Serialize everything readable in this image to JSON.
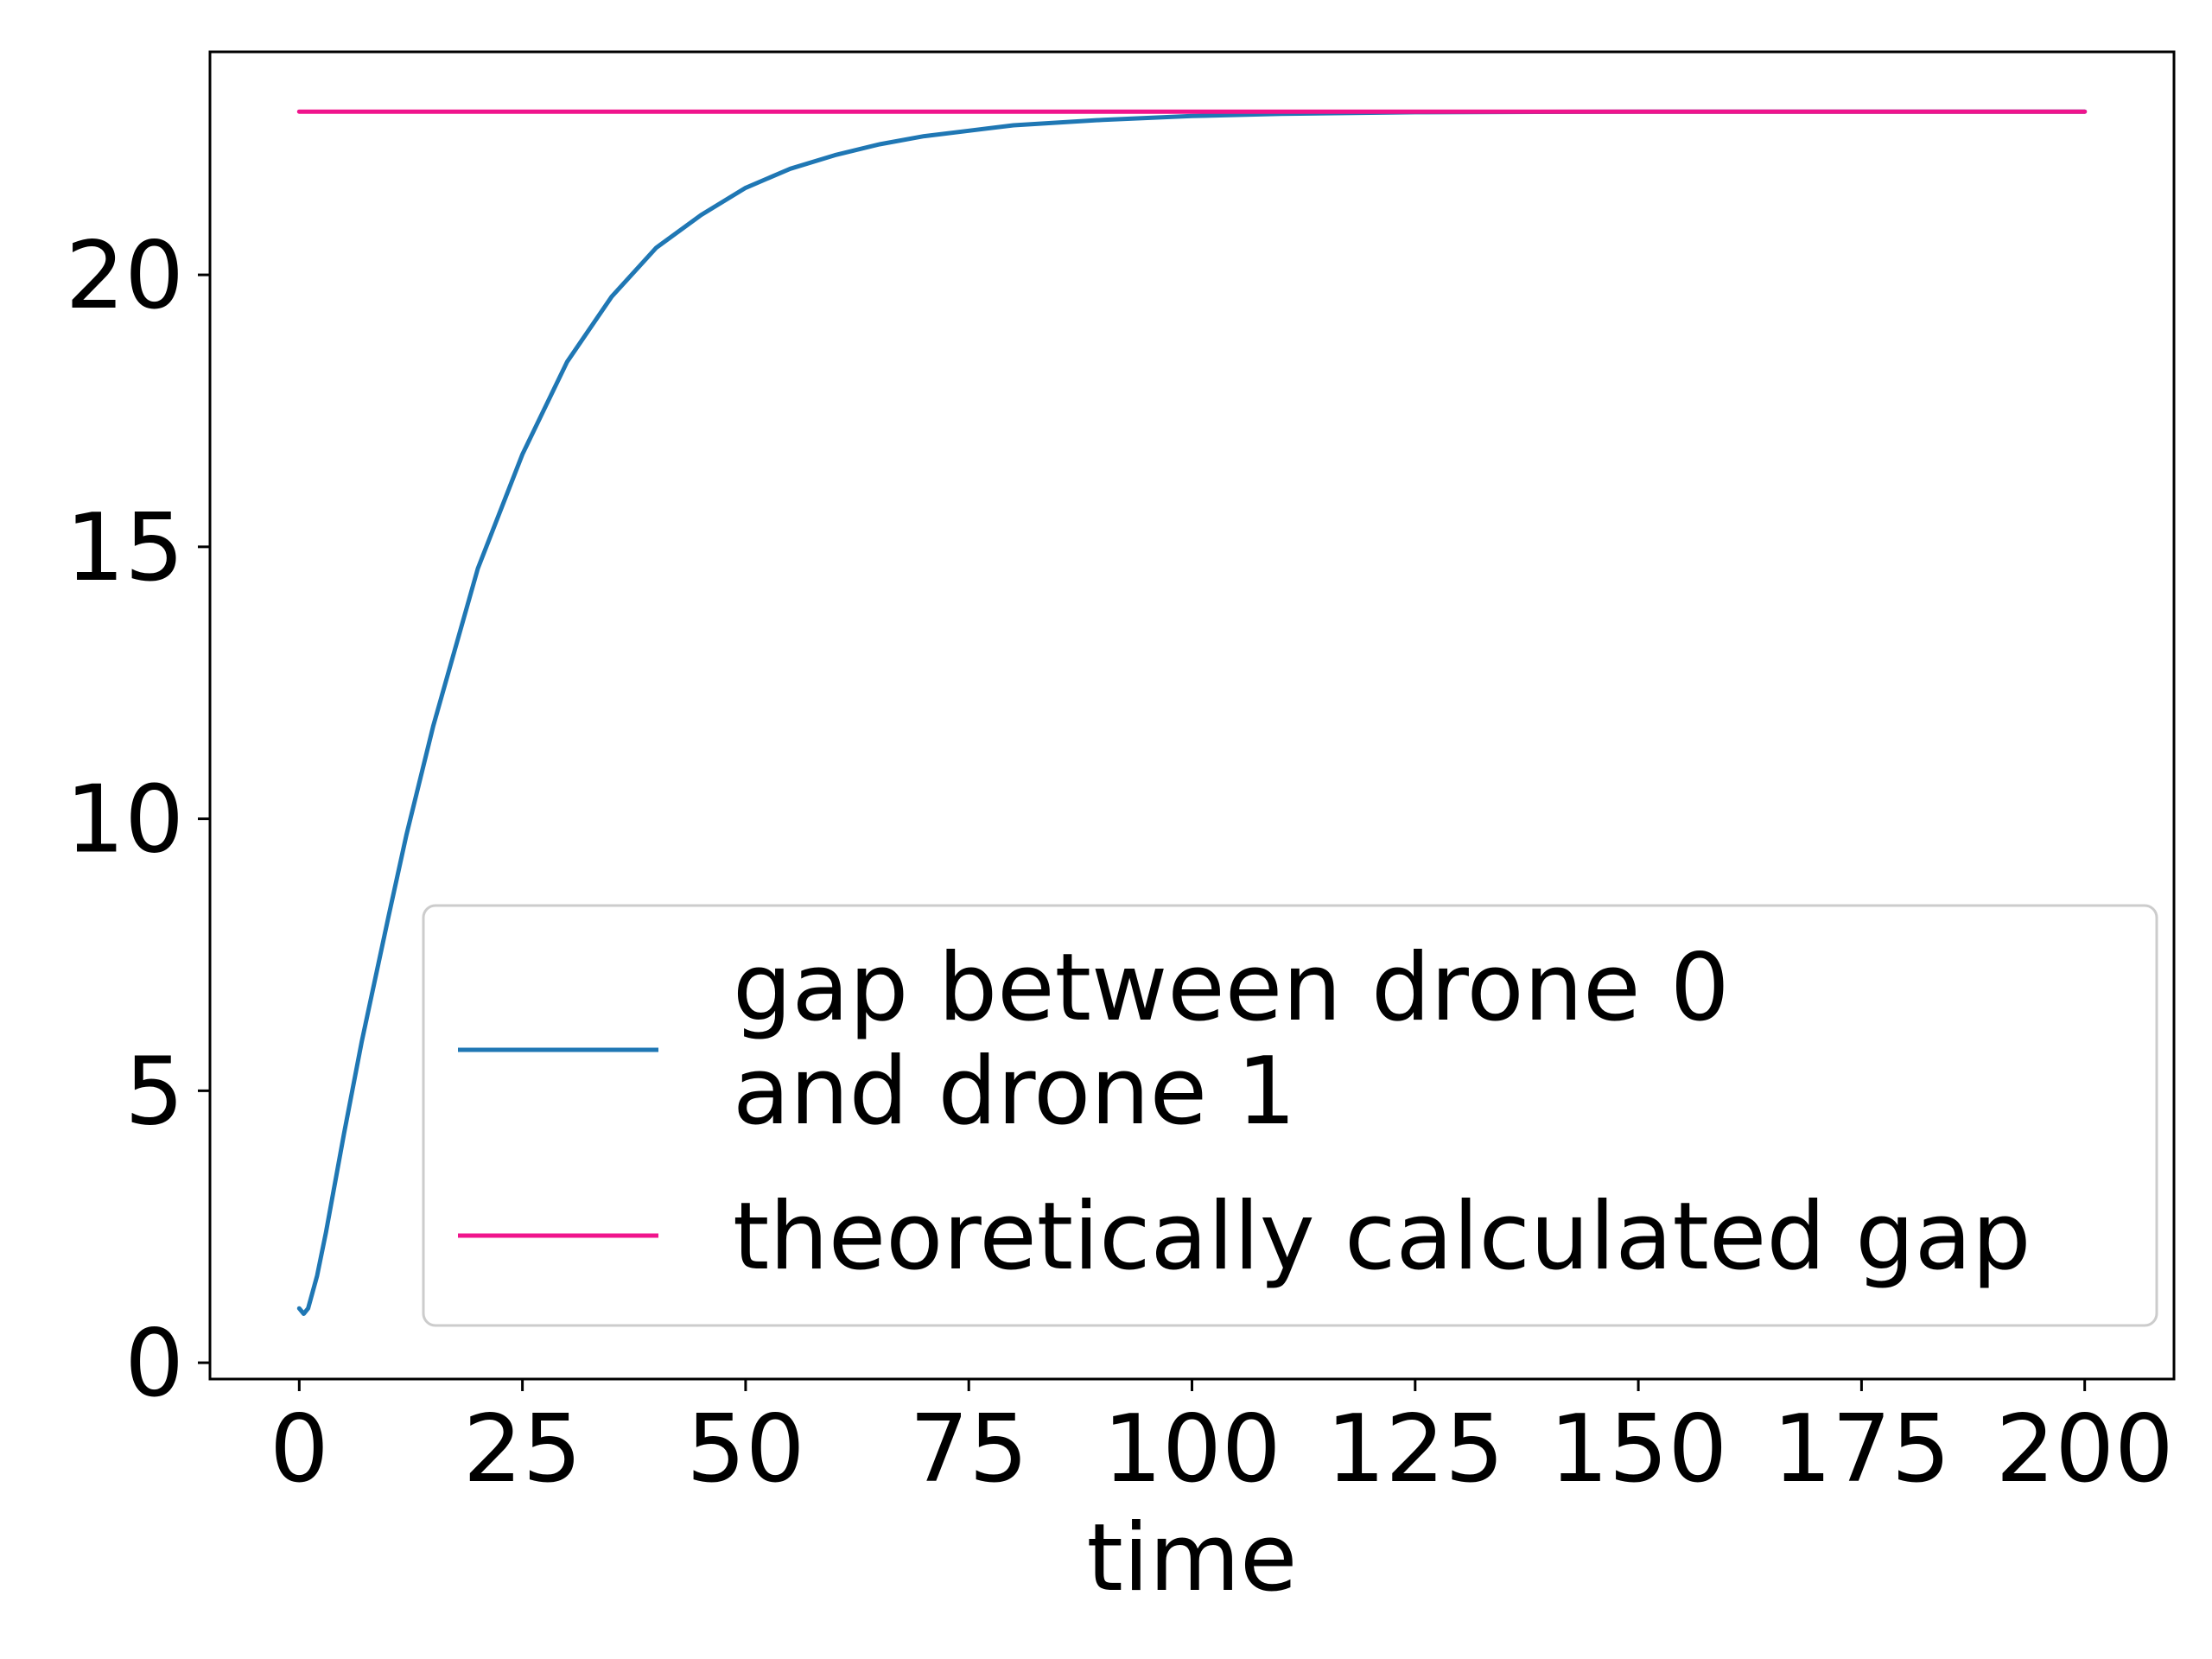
{
  "chart_data": {
    "type": "line",
    "title": "",
    "xlabel": "time",
    "ylabel": "",
    "xlim": [
      -10,
      210
    ],
    "ylim": [
      -0.3,
      24.1
    ],
    "xticks": [
      0,
      25,
      50,
      75,
      100,
      125,
      150,
      175,
      200
    ],
    "xtick_labels": [
      "0",
      "25",
      "50",
      "75",
      "100",
      "125",
      "150",
      "175",
      "200"
    ],
    "yticks": [
      0,
      5,
      10,
      15,
      20
    ],
    "ytick_labels": [
      "0",
      "5",
      "10",
      "15",
      "20"
    ],
    "grid": false,
    "legend": {
      "position": "lower-right",
      "entries": [
        {
          "lines": [
            "gap between drone 0",
            "and drone 1"
          ],
          "color": "#1f77b4"
        },
        {
          "lines": [
            "theoretically calculated gap"
          ],
          "color": "#f0148c"
        }
      ]
    },
    "series": [
      {
        "name": "gap between drone 0 and drone 1",
        "color": "#1f77b4",
        "x": [
          0,
          0.5,
          1,
          2,
          3,
          5,
          7,
          10,
          12,
          15,
          20,
          25,
          30,
          35,
          40,
          45,
          50,
          55,
          60,
          65,
          70,
          75,
          80,
          90,
          100,
          110,
          125,
          150,
          175,
          200
        ],
        "y": [
          1.0,
          0.9,
          1.0,
          1.6,
          2.4,
          4.2,
          5.9,
          8.2,
          9.7,
          11.7,
          14.6,
          16.7,
          18.4,
          19.6,
          20.5,
          21.1,
          21.6,
          21.95,
          22.2,
          22.4,
          22.55,
          22.65,
          22.75,
          22.85,
          22.92,
          22.96,
          22.99,
          23.0,
          23.0,
          23.0
        ]
      },
      {
        "name": "theoretically calculated gap",
        "color": "#f0148c",
        "x": [
          0,
          200
        ],
        "y": [
          23.0,
          23.0
        ]
      }
    ]
  }
}
